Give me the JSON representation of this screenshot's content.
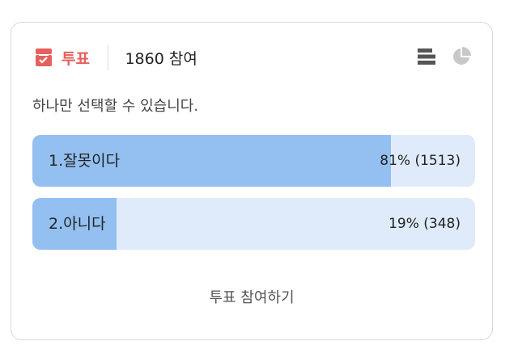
{
  "header": {
    "vote_label": "투표",
    "participants": "1860 참여",
    "accent": "#e5605e"
  },
  "subtitle": "하나만 선택할 수 있습니다.",
  "options": [
    {
      "label": "1.잘못이다",
      "result": "81% (1513)",
      "percent": 81
    },
    {
      "label": "2.아니다",
      "result": "19% (348)",
      "percent": 19
    }
  ],
  "icons": [
    "ballot-box-icon",
    "bar-list-icon",
    "pie-chart-icon"
  ],
  "submit_label": "투표 참여하기"
}
